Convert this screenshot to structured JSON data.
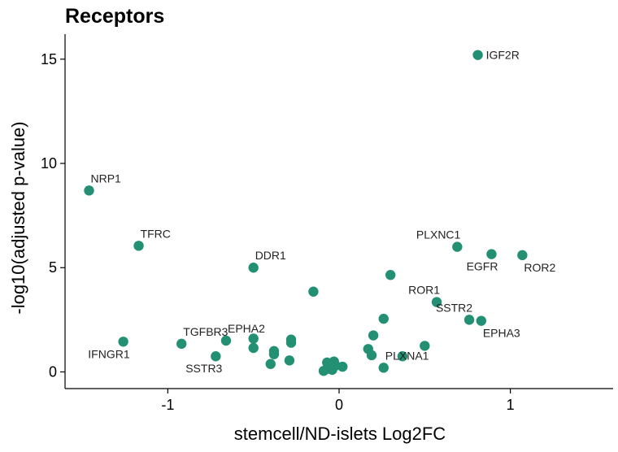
{
  "chart_data": {
    "type": "scatter",
    "title": "Receptors",
    "xlabel": "stemcell/ND-islets Log2FC",
    "ylabel": "-log10(adjusted p-value)",
    "xlim": [
      -1.6,
      1.6
    ],
    "ylim": [
      -0.8,
      16.2
    ],
    "xticks": [
      -1,
      0,
      1
    ],
    "yticks": [
      0,
      5,
      10,
      15
    ],
    "grid": false,
    "color": "#239073",
    "points": [
      {
        "x": 0.81,
        "y": 15.2,
        "label": "IGF2R",
        "lpos": "right"
      },
      {
        "x": -1.46,
        "y": 8.7,
        "label": "NRP1",
        "lpos": "upright"
      },
      {
        "x": -1.17,
        "y": 6.05,
        "label": "TFRC",
        "lpos": "upright"
      },
      {
        "x": 0.69,
        "y": 6.0,
        "label": "PLXNC1",
        "lpos": "upleft"
      },
      {
        "x": 0.89,
        "y": 5.65,
        "label": "EGFR",
        "lpos": "downleft"
      },
      {
        "x": 1.07,
        "y": 5.6,
        "label": "ROR2",
        "lpos": "downright"
      },
      {
        "x": -0.5,
        "y": 5.0,
        "label": "DDR1",
        "lpos": "upright"
      },
      {
        "x": 0.3,
        "y": 4.65,
        "label": "",
        "lpos": ""
      },
      {
        "x": 0.57,
        "y": 3.35,
        "label": "ROR1",
        "lpos": "upleft"
      },
      {
        "x": -0.15,
        "y": 3.85,
        "label": "",
        "lpos": ""
      },
      {
        "x": 0.76,
        "y": 2.5,
        "label": "SSTR2",
        "lpos": "upleft"
      },
      {
        "x": 0.83,
        "y": 2.45,
        "label": "EPHA3",
        "lpos": "downright"
      },
      {
        "x": 0.26,
        "y": 2.55,
        "label": "",
        "lpos": ""
      },
      {
        "x": 0.2,
        "y": 1.75,
        "label": "",
        "lpos": ""
      },
      {
        "x": -1.26,
        "y": 1.45,
        "label": "IFNGR1",
        "lpos": "downleft"
      },
      {
        "x": -0.92,
        "y": 1.35,
        "label": "TGFBR3",
        "lpos": "upright"
      },
      {
        "x": -0.66,
        "y": 1.5,
        "label": "EPHA2",
        "lpos": "upright"
      },
      {
        "x": -0.5,
        "y": 1.6,
        "label": "",
        "lpos": ""
      },
      {
        "x": -0.5,
        "y": 1.15,
        "label": "",
        "lpos": ""
      },
      {
        "x": -0.28,
        "y": 1.55,
        "label": "",
        "lpos": ""
      },
      {
        "x": -0.28,
        "y": 1.4,
        "label": "",
        "lpos": ""
      },
      {
        "x": -0.38,
        "y": 1.0,
        "label": "",
        "lpos": ""
      },
      {
        "x": -0.38,
        "y": 0.85,
        "label": "",
        "lpos": ""
      },
      {
        "x": -0.72,
        "y": 0.75,
        "label": "SSTR3",
        "lpos": "downleft"
      },
      {
        "x": -0.4,
        "y": 0.38,
        "label": "",
        "lpos": ""
      },
      {
        "x": -0.29,
        "y": 0.55,
        "label": "",
        "lpos": ""
      },
      {
        "x": 0.17,
        "y": 1.1,
        "label": "",
        "lpos": ""
      },
      {
        "x": 0.19,
        "y": 0.8,
        "label": "",
        "lpos": ""
      },
      {
        "x": 0.5,
        "y": 1.25,
        "label": "",
        "lpos": ""
      },
      {
        "x": 0.37,
        "y": 0.75,
        "label": "",
        "lpos": ""
      },
      {
        "x": 0.26,
        "y": 0.2,
        "label": "PLXNA1",
        "lpos": "upright"
      },
      {
        "x": -0.07,
        "y": 0.45,
        "label": "",
        "lpos": ""
      },
      {
        "x": -0.03,
        "y": 0.5,
        "label": "",
        "lpos": ""
      },
      {
        "x": -0.02,
        "y": 0.3,
        "label": "",
        "lpos": ""
      },
      {
        "x": 0.02,
        "y": 0.25,
        "label": "",
        "lpos": ""
      },
      {
        "x": -0.06,
        "y": 0.15,
        "label": "",
        "lpos": ""
      },
      {
        "x": -0.09,
        "y": 0.05,
        "label": "",
        "lpos": ""
      },
      {
        "x": -0.04,
        "y": 0.1,
        "label": "",
        "lpos": ""
      }
    ]
  }
}
